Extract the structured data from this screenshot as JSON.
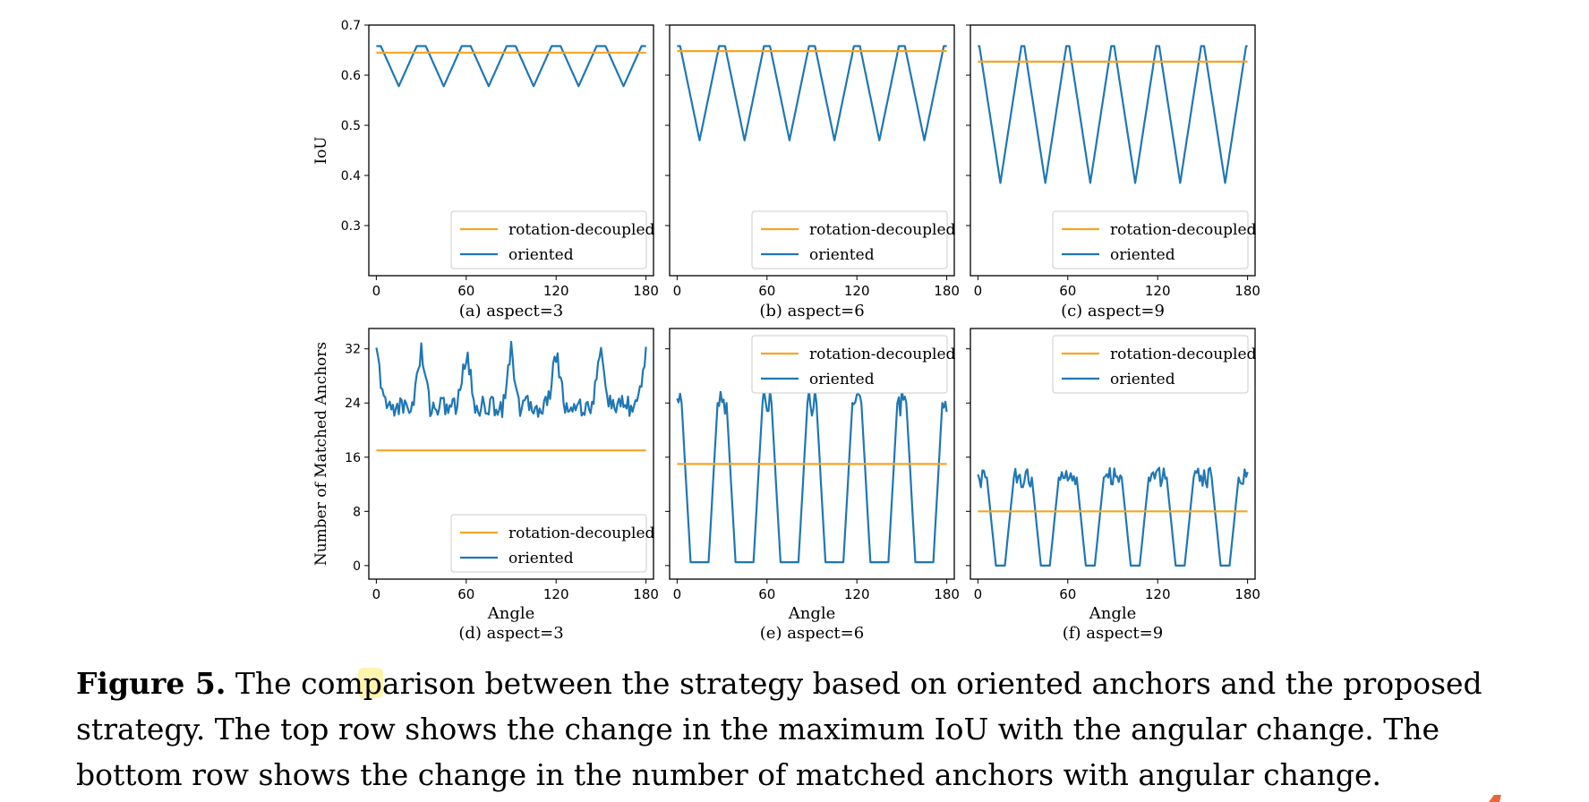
{
  "caption": {
    "label": "Figure 5.",
    "text": "The comparison between the strategy based on oriented anchors and the proposed strategy. The top row shows the change in the maximum IoU with the angular change. The bottom row shows the change in the number of matched anchors with angular change."
  },
  "colors": {
    "rotation_decoupled": "#f5a623",
    "oriented": "#1f77b4"
  },
  "chart_data": [
    {
      "type": "line",
      "subtitle": "(a) aspect=3",
      "xlabel": "",
      "ylabel": "IoU",
      "xlim": [
        -5,
        185
      ],
      "ylim": [
        0.2,
        0.7
      ],
      "xticks": [
        0,
        60,
        120,
        180
      ],
      "yticks": [
        0.3,
        0.4,
        0.5,
        0.6,
        0.7
      ],
      "legend": [
        "rotation-decoupled",
        "oriented"
      ],
      "legend_position": "lower-right",
      "series": [
        {
          "name": "rotation-decoupled",
          "constant": 0.645
        },
        {
          "name": "oriented",
          "wave": "dips",
          "period": 30,
          "offset": 15,
          "base": 0.658,
          "trough": 0.578,
          "halfwidth": 12
        }
      ]
    },
    {
      "type": "line",
      "subtitle": "(b) aspect=6",
      "xlabel": "",
      "ylabel": "",
      "xlim": [
        -5,
        185
      ],
      "ylim": [
        0.2,
        0.7
      ],
      "xticks": [
        0,
        60,
        120,
        180
      ],
      "yticks": [
        0.3,
        0.4,
        0.5,
        0.6,
        0.7
      ],
      "legend": [
        "rotation-decoupled",
        "oriented"
      ],
      "legend_position": "lower-right",
      "series": [
        {
          "name": "rotation-decoupled",
          "constant": 0.648
        },
        {
          "name": "oriented",
          "wave": "dips",
          "period": 30,
          "offset": 15,
          "base": 0.658,
          "trough": 0.47,
          "halfwidth": 13
        }
      ]
    },
    {
      "type": "line",
      "subtitle": "(c) aspect=9",
      "xlabel": "",
      "ylabel": "",
      "xlim": [
        -5,
        185
      ],
      "ylim": [
        0.2,
        0.7
      ],
      "xticks": [
        0,
        60,
        120,
        180
      ],
      "yticks": [
        0.3,
        0.4,
        0.5,
        0.6,
        0.7
      ],
      "legend": [
        "rotation-decoupled",
        "oriented"
      ],
      "legend_position": "lower-right",
      "series": [
        {
          "name": "rotation-decoupled",
          "constant": 0.627
        },
        {
          "name": "oriented",
          "wave": "dips",
          "period": 30,
          "offset": 15,
          "base": 0.658,
          "trough": 0.385,
          "halfwidth": 14
        }
      ]
    },
    {
      "type": "line",
      "subtitle": "(d) aspect=3",
      "xlabel": "Angle",
      "ylabel": "Number of Matched Anchors",
      "xlim": [
        -5,
        185
      ],
      "ylim": [
        -2,
        35
      ],
      "xticks": [
        0,
        60,
        120,
        180
      ],
      "yticks": [
        0,
        8,
        16,
        24,
        32
      ],
      "legend": [
        "rotation-decoupled",
        "oriented"
      ],
      "legend_position": "lower-right",
      "series": [
        {
          "name": "rotation-decoupled",
          "constant": 17
        },
        {
          "name": "oriented",
          "wave": "peaks",
          "period": 30,
          "offset": 0,
          "base": 23.5,
          "peak": 31.5,
          "halfwidth": 6,
          "noise": 1.6,
          "step": 1
        }
      ]
    },
    {
      "type": "line",
      "subtitle": "(e) aspect=6",
      "xlabel": "Angle",
      "ylabel": "",
      "xlim": [
        -5,
        185
      ],
      "ylim": [
        -2,
        35
      ],
      "xticks": [
        0,
        60,
        120,
        180
      ],
      "yticks": [
        0,
        8,
        16,
        24,
        32
      ],
      "legend": [
        "rotation-decoupled",
        "oriented"
      ],
      "legend_position": "upper-right",
      "series": [
        {
          "name": "rotation-decoupled",
          "constant": 15
        },
        {
          "name": "oriented",
          "wave": "plateau",
          "period": 30,
          "offset": 15,
          "high": 24,
          "low": 0.5,
          "halfwidth": 9,
          "noise": 2,
          "step": 1
        }
      ]
    },
    {
      "type": "line",
      "subtitle": "(f) aspect=9",
      "xlabel": "Angle",
      "ylabel": "",
      "xlim": [
        -5,
        185
      ],
      "ylim": [
        -2,
        35
      ],
      "xticks": [
        0,
        60,
        120,
        180
      ],
      "yticks": [
        0,
        8,
        16,
        24,
        32
      ],
      "legend": [
        "rotation-decoupled",
        "oriented"
      ],
      "legend_position": "upper-right",
      "series": [
        {
          "name": "rotation-decoupled",
          "constant": 8
        },
        {
          "name": "oriented",
          "wave": "plateau",
          "period": 30,
          "offset": 15,
          "high": 13,
          "low": 0,
          "halfwidth": 6,
          "noise": 1.5,
          "step": 1
        }
      ]
    }
  ]
}
